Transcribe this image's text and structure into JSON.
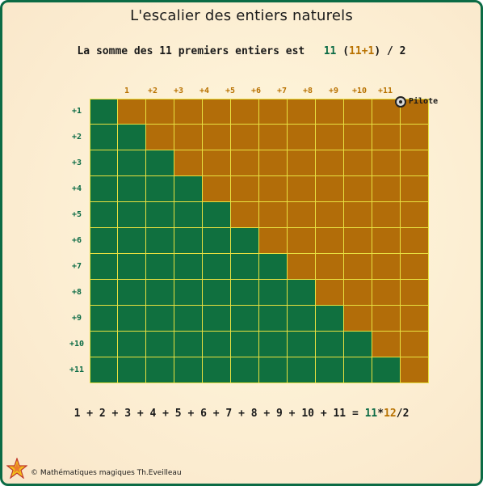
{
  "title": "L'escalier des entiers naturels",
  "sum_line": {
    "prefix": "La somme des 11 premiers entiers est",
    "n": "11",
    "open": "(",
    "n_plus_one": "11+1",
    "close": ")",
    "suffix": "/ 2"
  },
  "grid": {
    "size": 11,
    "column_labels": [
      "1",
      "+2",
      "+3",
      "+4",
      "+5",
      "+6",
      "+7",
      "+8",
      "+9",
      "+10",
      "+11"
    ],
    "row_labels": [
      "+1",
      "+2",
      "+3",
      "+4",
      "+5",
      "+6",
      "+7",
      "+8",
      "+9",
      "+10",
      "+11"
    ],
    "colors": {
      "green": "#10703f",
      "orange": "#b26d09",
      "line": "#e8e040"
    }
  },
  "pilote": {
    "label": "Pilote",
    "icon": "radio-target-icon"
  },
  "formula": {
    "terms": "1 + 2 + 3 + 4 + 5 + 6 + 7 + 8 + 9 + 10 + 11 =",
    "n": "11",
    "times": "*",
    "n_plus_one": "12",
    "divisor": "/2"
  },
  "footer": {
    "copyright": "© Mathématiques magiques Th.Eveilleau",
    "icon": "star-icon"
  }
}
